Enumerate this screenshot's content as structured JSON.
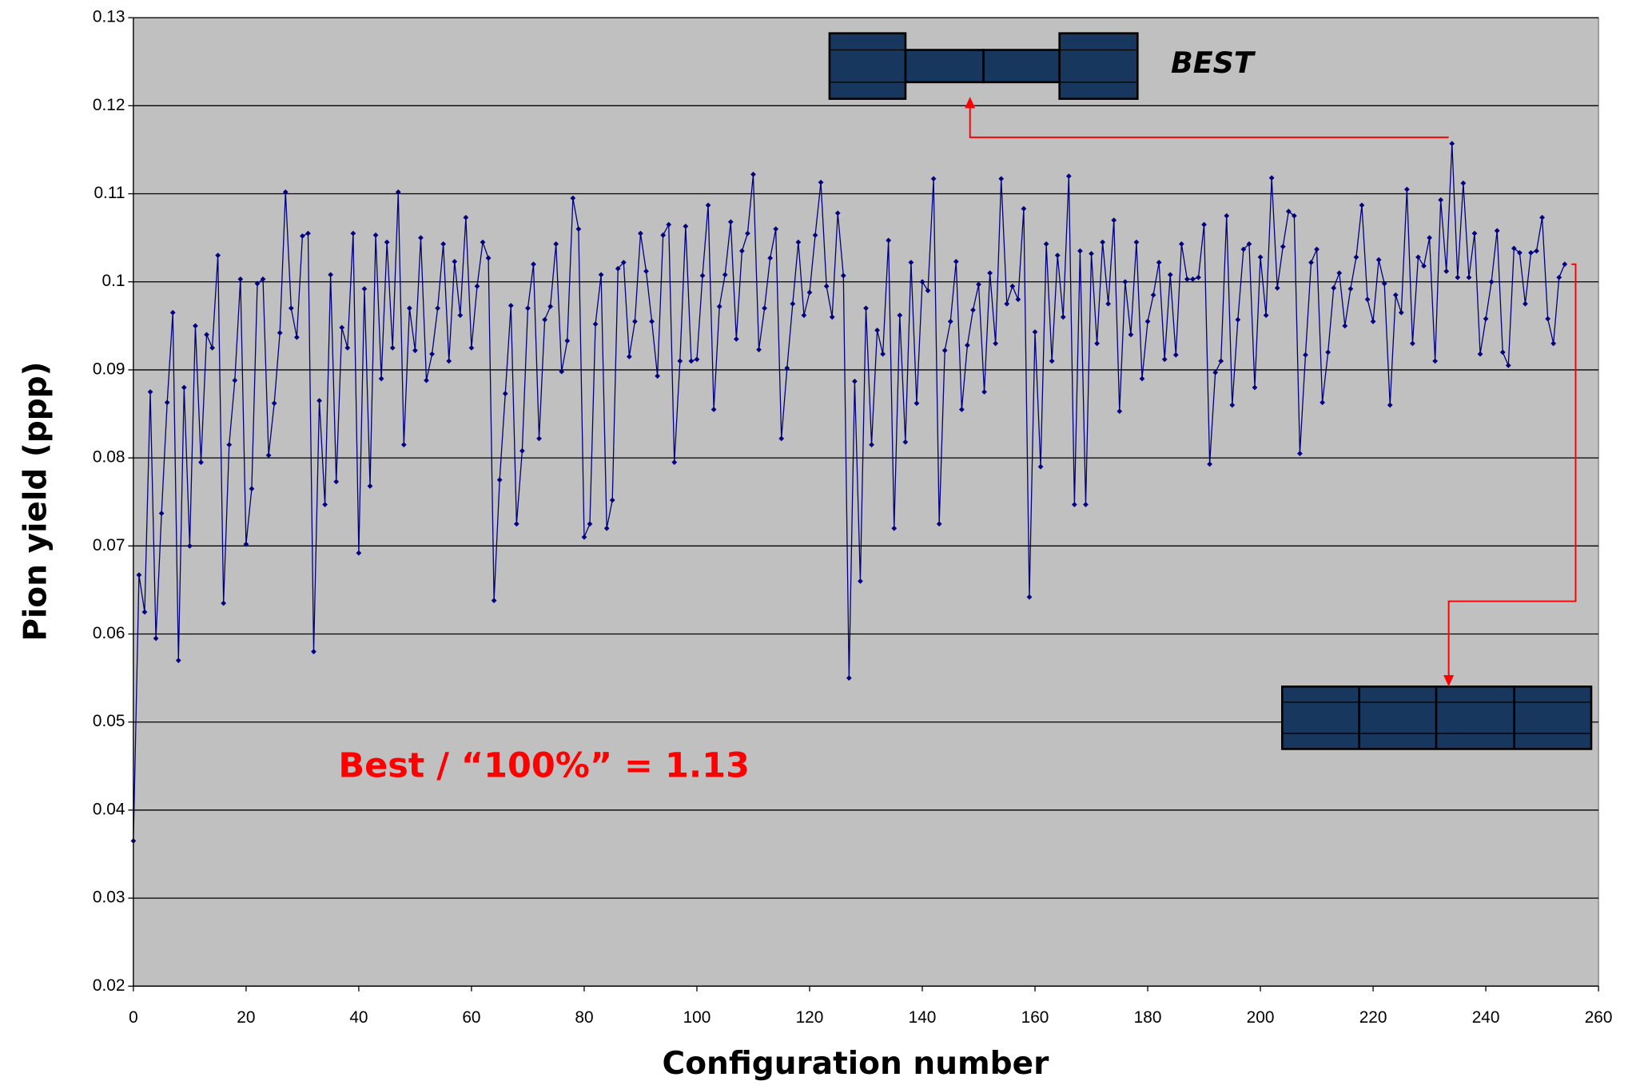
{
  "chart_data": {
    "type": "line",
    "x_label": "Configuration number",
    "y_label": "Pion yield (ppp)",
    "annotations": [
      "BEST",
      "Best / “100%” = 1.13"
    ],
    "xlim": [
      0,
      260
    ],
    "xticks": [
      0,
      20,
      40,
      60,
      80,
      100,
      120,
      140,
      160,
      180,
      200,
      220,
      240,
      260
    ],
    "ylim": [
      0.02,
      0.13
    ],
    "yticks": [
      0.02,
      0.03,
      0.04,
      0.05,
      0.06,
      0.07,
      0.08,
      0.09,
      {
        "value": 0.1,
        "label": "0.1"
      },
      0.11,
      0.12,
      0.13
    ],
    "grid": true,
    "background": "#c0c0c0",
    "series": [
      {
        "color": "#000080",
        "x": [
          0,
          1,
          2,
          3,
          4,
          5,
          6,
          7,
          8,
          9,
          10,
          11,
          12,
          13,
          14,
          15,
          16,
          17,
          18,
          19,
          20,
          21,
          22,
          23,
          24,
          25,
          26,
          27,
          28,
          29,
          30,
          31,
          32,
          33,
          34,
          35,
          36,
          37,
          38,
          39,
          40,
          41,
          42,
          43,
          44,
          45,
          46,
          47,
          48,
          49,
          50,
          51,
          52,
          53,
          54,
          55,
          56,
          57,
          58,
          59,
          60,
          61,
          62,
          63,
          64,
          65,
          66,
          67,
          68,
          69,
          70,
          71,
          72,
          73,
          74,
          75,
          76,
          77,
          78,
          79,
          80,
          81,
          82,
          83,
          84,
          85,
          86,
          87,
          88,
          89,
          90,
          91,
          92,
          93,
          94,
          95,
          96,
          97,
          98,
          99,
          100,
          101,
          102,
          103,
          104,
          105,
          106,
          107,
          108,
          109,
          110,
          111,
          112,
          113,
          114,
          115,
          116,
          117,
          118,
          119,
          120,
          121,
          122,
          123,
          124,
          125,
          126,
          127,
          128,
          129,
          130,
          131,
          132,
          133,
          134,
          135,
          136,
          137,
          138,
          139,
          140,
          141,
          142,
          143,
          144,
          145,
          146,
          147,
          148,
          149,
          150,
          151,
          152,
          153,
          154,
          155,
          156,
          157,
          158,
          159,
          160,
          161,
          162,
          163,
          164,
          165,
          166,
          167,
          168,
          169,
          170,
          171,
          172,
          173,
          174,
          175,
          176,
          177,
          178,
          179,
          180,
          181,
          182,
          183,
          184,
          185,
          186,
          187,
          188,
          189,
          190,
          191,
          192,
          193,
          194,
          195,
          196,
          197,
          198,
          199,
          200,
          201,
          202,
          203,
          204,
          205,
          206,
          207,
          208,
          209,
          210,
          211,
          212,
          213,
          214,
          215,
          216,
          217,
          218,
          219,
          220,
          221,
          222,
          223,
          224,
          225,
          226,
          227,
          228,
          229,
          230,
          231,
          232,
          233,
          234,
          235,
          236,
          237,
          238,
          239,
          240,
          241,
          242,
          243,
          244,
          245,
          246,
          247,
          248,
          249,
          250,
          251,
          252,
          253,
          254
        ],
        "values": [
          0.0365,
          0.0667,
          0.0625,
          0.0875,
          0.0595,
          0.0737,
          0.0863,
          0.0965,
          0.057,
          0.088,
          0.07,
          0.095,
          0.0795,
          0.094,
          0.0925,
          0.103,
          0.0635,
          0.0815,
          0.0888,
          0.1003,
          0.0702,
          0.0765,
          0.0998,
          0.1003,
          0.0803,
          0.0862,
          0.0942,
          0.1102,
          0.097,
          0.0937,
          0.1052,
          0.1055,
          0.058,
          0.0865,
          0.0747,
          0.1008,
          0.0773,
          0.0948,
          0.0925,
          0.1055,
          0.0692,
          0.0992,
          0.0768,
          0.1053,
          0.089,
          0.1045,
          0.0925,
          0.1102,
          0.0815,
          0.097,
          0.0922,
          0.105,
          0.0888,
          0.0918,
          0.097,
          0.1043,
          0.091,
          0.1023,
          0.0962,
          0.1073,
          0.0925,
          0.0995,
          0.1045,
          0.1027,
          0.0638,
          0.0775,
          0.0873,
          0.0973,
          0.0725,
          0.0808,
          0.097,
          0.102,
          0.0822,
          0.0957,
          0.0972,
          0.1043,
          0.0898,
          0.0933,
          0.1095,
          0.106,
          0.071,
          0.0725,
          0.0952,
          0.1008,
          0.072,
          0.0752,
          0.1015,
          0.1022,
          0.0915,
          0.0955,
          0.1055,
          0.1012,
          0.0955,
          0.0893,
          0.1053,
          0.1065,
          0.0795,
          0.091,
          0.1063,
          0.091,
          0.0912,
          0.1007,
          0.1087,
          0.0855,
          0.0972,
          0.1008,
          0.1068,
          0.0935,
          0.1035,
          0.1055,
          0.1122,
          0.0923,
          0.097,
          0.1027,
          0.106,
          0.0822,
          0.0902,
          0.0975,
          0.1045,
          0.0962,
          0.0988,
          0.1053,
          0.1113,
          0.0995,
          0.096,
          0.1078,
          0.1007,
          0.055,
          0.0887,
          0.066,
          0.097,
          0.0815,
          0.0945,
          0.0918,
          0.1047,
          0.072,
          0.0962,
          0.0818,
          0.1022,
          0.0862,
          0.1,
          0.099,
          0.1117,
          0.0725,
          0.0922,
          0.0955,
          0.1023,
          0.0855,
          0.0928,
          0.0968,
          0.0997,
          0.0875,
          0.101,
          0.093,
          0.1117,
          0.0975,
          0.0995,
          0.098,
          0.1083,
          0.0642,
          0.0943,
          0.079,
          0.1043,
          0.091,
          0.103,
          0.096,
          0.112,
          0.0747,
          0.1035,
          0.0747,
          0.1032,
          0.093,
          0.1045,
          0.0975,
          0.107,
          0.0853,
          0.1,
          0.094,
          0.1045,
          0.089,
          0.0955,
          0.0985,
          0.1022,
          0.0912,
          0.1008,
          0.0917,
          0.1043,
          0.1003,
          0.1003,
          0.1005,
          0.1065,
          0.0793,
          0.0897,
          0.091,
          0.1075,
          0.086,
          0.0957,
          0.1037,
          0.1043,
          0.088,
          0.1028,
          0.0962,
          0.1118,
          0.0993,
          0.104,
          0.108,
          0.1075,
          0.0805,
          0.0917,
          0.1022,
          0.1037,
          0.0863,
          0.092,
          0.0993,
          0.101,
          0.095,
          0.0992,
          0.1028,
          0.1087,
          0.098,
          0.0955,
          0.1025,
          0.0998,
          0.086,
          0.0985,
          0.0965,
          0.1105,
          0.093,
          0.1028,
          0.1018,
          0.105,
          0.091,
          0.1093,
          0.1012,
          0.1157,
          0.1005,
          0.1112,
          0.1005,
          0.1055,
          0.0918,
          0.0958,
          0.1,
          0.1058,
          0.092,
          0.0905,
          0.1038,
          0.1033,
          0.0975,
          0.1033,
          0.1035,
          0.1073,
          0.0958,
          0.093,
          0.1005,
          0.102
        ]
      }
    ]
  }
}
